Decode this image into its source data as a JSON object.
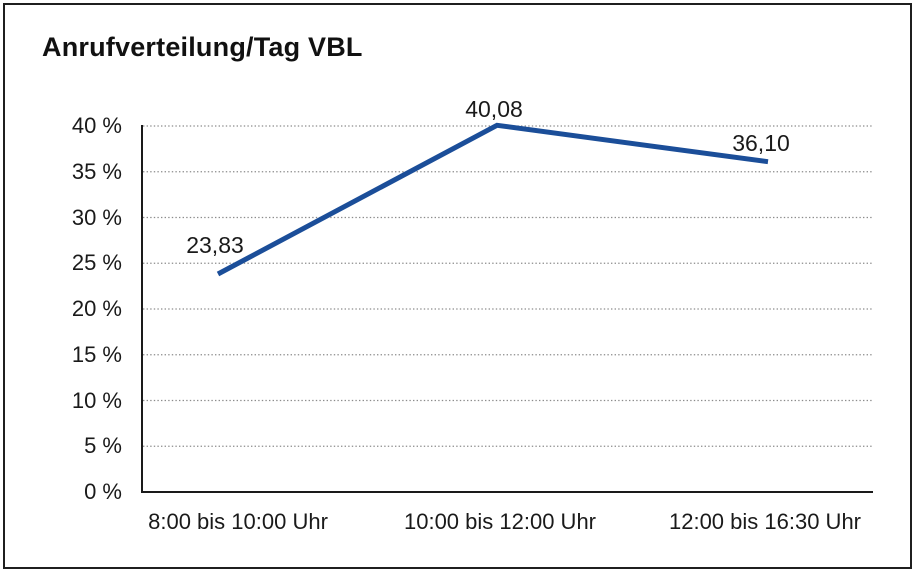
{
  "window": {
    "background": "#ffffff",
    "border_color": "#1f1f1f"
  },
  "chart_data": {
    "type": "line",
    "title": "Anrufverteilung/Tag VBL",
    "categories": [
      "8:00 bis 10:00 Uhr",
      "10:00 bis 12:00 Uhr",
      "12:00 bis 16:30 Uhr"
    ],
    "values": [
      23.83,
      40.08,
      36.1
    ],
    "value_labels": [
      "23,83",
      "40,08",
      "36,10"
    ],
    "yticks": [
      0,
      5,
      10,
      15,
      20,
      25,
      30,
      35,
      40
    ],
    "ytick_labels": [
      "0 %",
      "5 %",
      "10 %",
      "15 %",
      "20 %",
      "25 %",
      "30 %",
      "35 %",
      "40 %"
    ],
    "ylim": [
      0,
      40
    ],
    "xlabel": "",
    "ylabel": "",
    "grid": "horizontal-dotted",
    "legend": "none",
    "line_color": "#1b4e99",
    "axis_color": "#1a1a1a",
    "grid_color": "#8c8c8c",
    "text_color": "#1a1a1a"
  }
}
